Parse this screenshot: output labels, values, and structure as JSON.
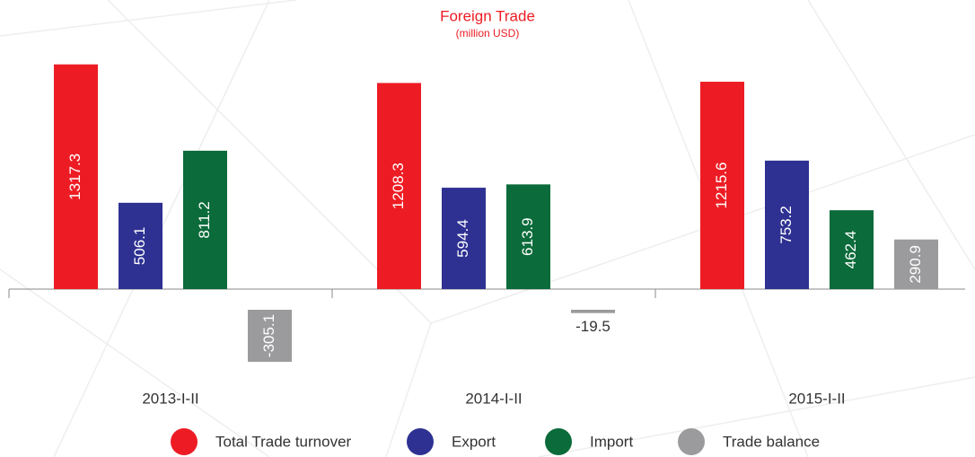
{
  "chart_data": {
    "type": "bar",
    "title": "Foreign Trade",
    "subtitle": "(million USD)",
    "categories": [
      "2013-I-II",
      "2014-I-II",
      "2015-I-II"
    ],
    "series": [
      {
        "name": "Total Trade turnover",
        "color": "#ed1c24",
        "values": [
          1317.3,
          1208.3,
          1215.6
        ]
      },
      {
        "name": "Export",
        "color": "#2e3192",
        "values": [
          506.1,
          594.4,
          753.2
        ]
      },
      {
        "name": "Import",
        "color": "#0b6b3a",
        "values": [
          811.2,
          613.9,
          462.4
        ]
      },
      {
        "name": "Trade balance",
        "color": "#9b9b9d",
        "values": [
          -305.1,
          -19.5,
          290.9
        ]
      }
    ]
  }
}
